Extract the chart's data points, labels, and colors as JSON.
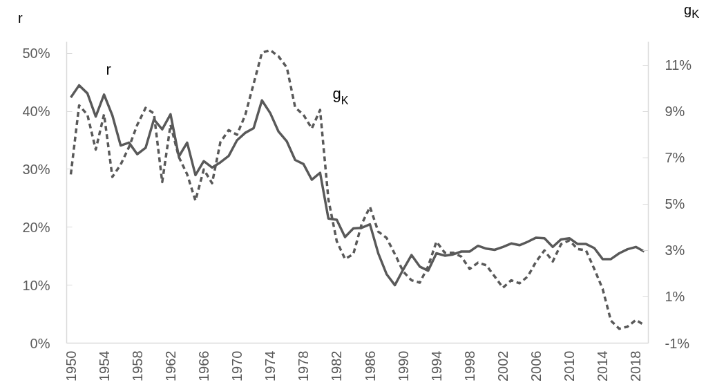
{
  "chart_data": {
    "type": "line",
    "ylabel": "r",
    "y2label": "g$_{K}$",
    "x": [
      1950,
      1951,
      1952,
      1953,
      1954,
      1955,
      1956,
      1957,
      1958,
      1959,
      1960,
      1961,
      1962,
      1963,
      1964,
      1965,
      1966,
      1967,
      1968,
      1969,
      1970,
      1971,
      1972,
      1973,
      1974,
      1975,
      1976,
      1977,
      1978,
      1979,
      1980,
      1981,
      1982,
      1983,
      1984,
      1985,
      1986,
      1987,
      1988,
      1989,
      1990,
      1991,
      1992,
      1993,
      1994,
      1995,
      1996,
      1997,
      1998,
      1999,
      2000,
      2001,
      2002,
      2003,
      2004,
      2005,
      2006,
      2007,
      2008,
      2009,
      2010,
      2011,
      2012,
      2013,
      2014,
      2015,
      2016,
      2017,
      2018,
      2019
    ],
    "series": [
      {
        "name": "r",
        "color": "#595959",
        "line_style": "solid",
        "values": [
          42.4,
          44.5,
          43.1,
          39.1,
          42.9,
          39.3,
          34.1,
          34.6,
          32.6,
          33.7,
          38.6,
          36.9,
          39.5,
          32.2,
          34.6,
          29.0,
          31.4,
          30.3,
          31.2,
          32.3,
          35.0,
          36.3,
          37.1,
          41.9,
          39.7,
          36.5,
          34.8,
          31.6,
          30.9,
          28.2,
          29.4,
          21.5,
          21.3,
          18.3,
          19.8,
          19.9,
          20.5,
          15.5,
          11.9,
          10.0,
          12.7,
          15.2,
          13.2,
          12.5,
          15.5,
          15.1,
          15.3,
          15.8,
          15.8,
          16.8,
          16.3,
          16.1,
          16.6,
          17.2,
          16.9,
          17.5,
          18.2,
          18.1,
          16.6,
          17.9,
          18.1,
          17.1,
          17.1,
          16.4,
          14.5,
          14.5,
          15.5,
          16.2,
          16.6,
          15.8
        ]
      },
      {
        "name": "g$_{K}$",
        "color": "#595959",
        "line_style": "dashed",
        "axis": "y2",
        "values": [
          6.28,
          9.26,
          8.85,
          7.35,
          8.87,
          6.17,
          6.7,
          7.46,
          8.42,
          9.15,
          8.91,
          5.95,
          8.42,
          7.03,
          6.28,
          5.15,
          6.49,
          5.9,
          7.67,
          8.19,
          7.99,
          8.85,
          10.19,
          11.53,
          11.64,
          11.37,
          10.89,
          9.17,
          8.85,
          8.26,
          9.06,
          5.2,
          3.4,
          2.63,
          2.84,
          4.13,
          4.88,
          3.81,
          3.54,
          2.84,
          2.09,
          1.71,
          1.61,
          2.31,
          3.38,
          2.9,
          2.9,
          2.73,
          2.2,
          2.47,
          2.36,
          1.88,
          1.39,
          1.71,
          1.58,
          1.88,
          2.52,
          3.0,
          2.52,
          3.27,
          3.43,
          3.06,
          3.0,
          2.2,
          1.34,
          -0.03,
          -0.38,
          -0.29,
          0.0,
          -0.22
        ]
      }
    ],
    "xlim": [
      1949.5,
      2019.5
    ],
    "xticks": [
      1950,
      1954,
      1958,
      1962,
      1966,
      1970,
      1974,
      1978,
      1982,
      1986,
      1990,
      1994,
      1998,
      2002,
      2006,
      2010,
      2014,
      2018
    ],
    "ylim": [
      0,
      52
    ],
    "yticks": [
      {
        "value": 0,
        "label": "0%"
      },
      {
        "value": 10,
        "label": "10%"
      },
      {
        "value": 20,
        "label": "20%"
      },
      {
        "value": 30,
        "label": "30%"
      },
      {
        "value": 40,
        "label": "40%"
      },
      {
        "value": 50,
        "label": "50%"
      }
    ],
    "y2lim": [
      -1,
      12
    ],
    "y2ticks": [
      {
        "value": -1,
        "label": "-1%"
      },
      {
        "value": 1,
        "label": "1%"
      },
      {
        "value": 3,
        "label": "3%"
      },
      {
        "value": 5,
        "label": "5%"
      },
      {
        "value": 7,
        "label": "7%"
      },
      {
        "value": 9,
        "label": "9%"
      },
      {
        "value": 11,
        "label": "11%"
      }
    ],
    "grid": false
  }
}
